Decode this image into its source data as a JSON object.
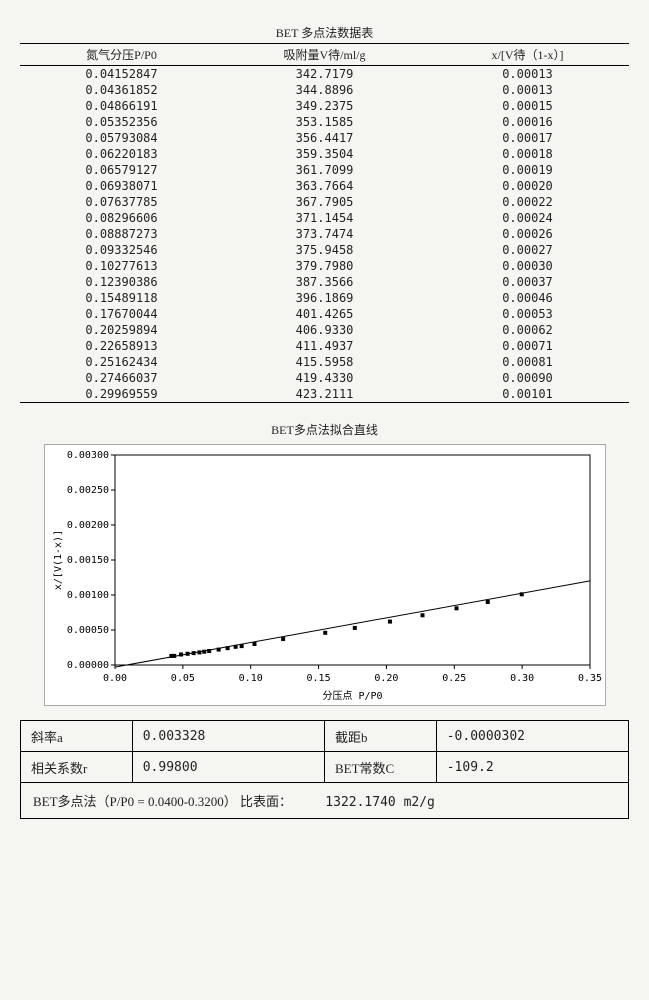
{
  "table": {
    "title": "BET 多点法数据表",
    "columns": [
      "氮气分压P/P0",
      "吸附量V待/ml/g",
      "x/[V待（1-x）]"
    ],
    "rows": [
      [
        "0.04152847",
        "342.7179",
        "0.00013"
      ],
      [
        "0.04361852",
        "344.8896",
        "0.00013"
      ],
      [
        "0.04866191",
        "349.2375",
        "0.00015"
      ],
      [
        "0.05352356",
        "353.1585",
        "0.00016"
      ],
      [
        "0.05793084",
        "356.4417",
        "0.00017"
      ],
      [
        "0.06220183",
        "359.3504",
        "0.00018"
      ],
      [
        "0.06579127",
        "361.7099",
        "0.00019"
      ],
      [
        "0.06938071",
        "363.7664",
        "0.00020"
      ],
      [
        "0.07637785",
        "367.7905",
        "0.00022"
      ],
      [
        "0.08296606",
        "371.1454",
        "0.00024"
      ],
      [
        "0.08887273",
        "373.7474",
        "0.00026"
      ],
      [
        "0.09332546",
        "375.9458",
        "0.00027"
      ],
      [
        "0.10277613",
        "379.7980",
        "0.00030"
      ],
      [
        "0.12390386",
        "387.3566",
        "0.00037"
      ],
      [
        "0.15489118",
        "396.1869",
        "0.00046"
      ],
      [
        "0.17670044",
        "401.4265",
        "0.00053"
      ],
      [
        "0.20259894",
        "406.9330",
        "0.00062"
      ],
      [
        "0.22658913",
        "411.4937",
        "0.00071"
      ],
      [
        "0.25162434",
        "415.5958",
        "0.00081"
      ],
      [
        "0.27466037",
        "419.4330",
        "0.00090"
      ],
      [
        "0.29969559",
        "423.2111",
        "0.00101"
      ]
    ]
  },
  "chart": {
    "type": "scatter+line",
    "title": "BET多点法拟合直线",
    "xlabel": "分压点 P/P0",
    "ylabel": "x/[V(1-x)]",
    "xlim": [
      0.0,
      0.35
    ],
    "ylim": [
      0.0,
      0.003
    ],
    "xtick_step": 0.05,
    "ytick_step": 0.0005,
    "xtick_labels": [
      "0.00",
      "0.05",
      "0.10",
      "0.15",
      "0.20",
      "0.25",
      "0.30",
      "0.35"
    ],
    "ytick_labels": [
      "0.00000",
      "0.00050",
      "0.00100",
      "0.00150",
      "0.00200",
      "0.00250",
      "0.00300"
    ],
    "background_color": "#ffffff",
    "grid_color": "#bbbbbb",
    "point_color": "#000000",
    "line_color": "#000000",
    "marker": "square",
    "marker_size": 4,
    "line_slope": 0.003328,
    "line_intercept": -3.02e-05,
    "points_x": [
      0.04152847,
      0.04361852,
      0.04866191,
      0.05352356,
      0.05793084,
      0.06220183,
      0.06579127,
      0.06938071,
      0.07637785,
      0.08296606,
      0.08887273,
      0.09332546,
      0.10277613,
      0.12390386,
      0.15489118,
      0.17670044,
      0.20259894,
      0.22658913,
      0.25162434,
      0.27466037,
      0.29969559
    ],
    "points_y": [
      0.00013,
      0.00013,
      0.00015,
      0.00016,
      0.00017,
      0.00018,
      0.00019,
      0.0002,
      0.00022,
      0.00024,
      0.00026,
      0.00027,
      0.0003,
      0.00037,
      0.00046,
      0.00053,
      0.00062,
      0.00071,
      0.00081,
      0.0009,
      0.00101
    ]
  },
  "results": {
    "slope_label": "斜率a",
    "slope_val": "0.003328",
    "intercept_label": "截距b",
    "intercept_val": "-0.0000302",
    "corr_label": "相关系数r",
    "corr_val": "0.99800",
    "betc_label": "BET常数C",
    "betc_val": "-109.2",
    "bottom_label": "BET多点法（P/P0 = 0.0400-0.3200） 比表面：",
    "bottom_val": "1322.1740 m2/g"
  }
}
